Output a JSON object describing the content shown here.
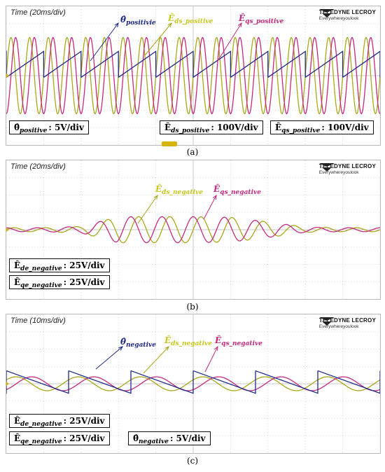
{
  "colors": {
    "theta": "#1f2a8a",
    "eds": "#a8a81a",
    "eqs": "#c42a7e",
    "grid": "#c9c9c9",
    "eds_label": "#c8c820"
  },
  "logo": {
    "name": "TELEDYNE LECROY",
    "tagline": "Everywhereyoulook"
  },
  "panels": {
    "a": {
      "caption": "(a)",
      "time": "Time (20ms/div)",
      "labels": {
        "theta": "positivie",
        "eds": "ds_positive",
        "eqs": "qs_positive"
      },
      "scales": [
        {
          "name": "positive",
          "symbol": "θ",
          "value": ": 5V/div"
        },
        {
          "name": "ds_positive",
          "symbol": "E",
          "value": ": 100V/div"
        },
        {
          "name": "qs_positive",
          "symbol": "E",
          "value": ": 100V/div"
        }
      ]
    },
    "b": {
      "caption": "(b)",
      "time": "Time (20ms/div)",
      "labels": {
        "eds": "ds_negative",
        "eqs": "qs_negative"
      },
      "scales": [
        {
          "name": "de_negative",
          "symbol": "E",
          "value": ": 25V/div"
        },
        {
          "name": "qe_negative",
          "symbol": "E",
          "value": ": 25V/div"
        }
      ]
    },
    "c": {
      "caption": "(c)",
      "time": "Time (10ms/div)",
      "labels": {
        "theta": "negative",
        "eds": "ds_negative",
        "eqs": "qs_negative"
      },
      "scales": [
        {
          "name": "de_negative",
          "symbol": "E",
          "value": ": 25V/div"
        },
        {
          "name": "qe_negative",
          "symbol": "E",
          "value": ": 25V/div"
        },
        {
          "name": "negative",
          "symbol": "θ",
          "value": ": 5V/div"
        }
      ]
    }
  },
  "chart_data": [
    {
      "type": "line",
      "x_div": 10,
      "y_div": 8,
      "series": [
        {
          "name": "ds_positive",
          "kind": "sine",
          "amplitude_div": 2.2,
          "cycles": 20,
          "phase": 0
        },
        {
          "name": "qs_positive",
          "kind": "sine",
          "amplitude_div": 2.2,
          "cycles": 20,
          "phase": -1.5708
        },
        {
          "name": "positivie",
          "kind": "sawtooth",
          "cycles": 10,
          "min_div": -0.1,
          "max_div": 1.4,
          "direction": "up"
        }
      ]
    },
    {
      "type": "line",
      "x_div": 10,
      "y_div": 8,
      "series": [
        {
          "name": "ds_negative",
          "kind": "sine",
          "cycles": 12,
          "phase": 0,
          "envelope": [
            0.15,
            0.15,
            0.25,
            1.0,
            1.0,
            1.0,
            0.95,
            0.6,
            0.2,
            0.15,
            0.15
          ],
          "amplitude_div": 0.75
        },
        {
          "name": "qs_negative",
          "kind": "sine",
          "cycles": 12,
          "phase": 1.5708,
          "envelope": [
            0.15,
            0.15,
            0.25,
            1.0,
            1.0,
            1.0,
            0.95,
            0.6,
            0.2,
            0.15,
            0.15
          ],
          "amplitude_div": 0.75
        }
      ]
    },
    {
      "type": "line",
      "x_div": 10,
      "y_div": 8,
      "series": [
        {
          "name": "ds_negative",
          "kind": "sine",
          "amplitude_div": 0.4,
          "cycles": 6,
          "phase": 0.6
        },
        {
          "name": "qs_negative",
          "kind": "sine",
          "amplitude_div": 0.4,
          "cycles": 6,
          "phase": -1.0
        },
        {
          "name": "negative",
          "kind": "sawtooth",
          "cycles": 6,
          "min_div": -0.55,
          "max_div": 0.75,
          "direction": "down"
        }
      ]
    }
  ]
}
